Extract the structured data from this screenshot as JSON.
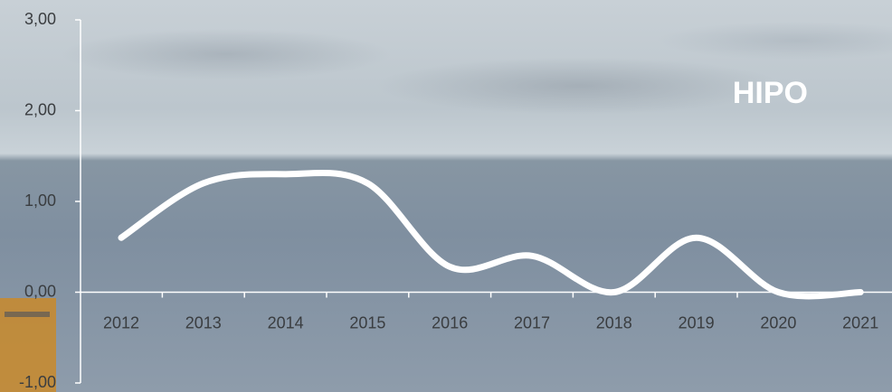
{
  "chart_data": {
    "type": "line",
    "title": "HIPO",
    "categories": [
      "2012",
      "2013",
      "2014",
      "2015",
      "2016",
      "2017",
      "2018",
      "2019",
      "2020",
      "2021"
    ],
    "values": [
      0.6,
      1.2,
      1.3,
      1.2,
      0.28,
      0.4,
      0.0,
      0.6,
      0.0,
      0.0
    ],
    "color": "#ffffff",
    "ylim": [
      -1,
      3
    ],
    "yticks": [
      {
        "value": -1,
        "label": "-1,00"
      },
      {
        "value": 0,
        "label": "0,00"
      },
      {
        "value": 1,
        "label": "1,00"
      },
      {
        "value": 2,
        "label": "2,00"
      },
      {
        "value": 3,
        "label": "3,00"
      }
    ]
  }
}
